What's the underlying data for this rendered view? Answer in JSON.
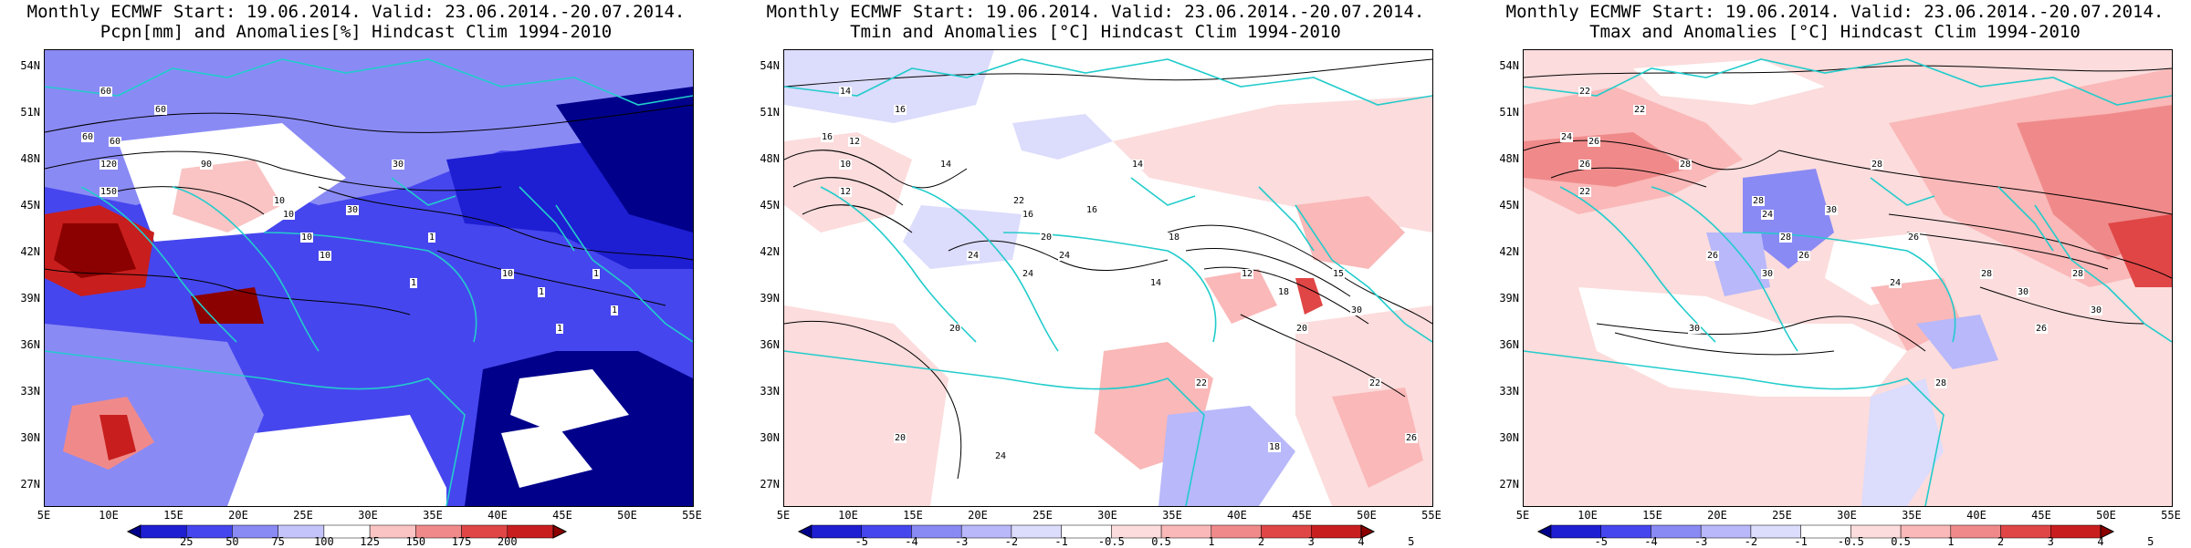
{
  "panels": [
    {
      "title1": "Monthly ECMWF Start: 19.06.2014. Valid: 23.06.2014.-20.07.2014.",
      "title2": "Pcpn[mm] and Anomalies[%] Hindcast Clim 1994-2010",
      "colorbar": {
        "labels": [
          "25",
          "50",
          "75",
          "100",
          "125",
          "150",
          "175",
          "200"
        ],
        "colors": [
          "#00008b",
          "#1e1ed2",
          "#4646ee",
          "#8a8af5",
          "#c4c4fa",
          "#ffffff",
          "#fac4c4",
          "#f08a8a",
          "#e04646",
          "#c81e1e",
          "#8b0000"
        ]
      },
      "contour_labels": [
        "60",
        "60",
        "60",
        "60",
        "90",
        "120",
        "150",
        "10",
        "10",
        "30",
        "30",
        "10",
        "10",
        "1",
        "1",
        "10",
        "1",
        "1",
        "1",
        "1"
      ]
    },
    {
      "title1": "Monthly ECMWF Start: 19.06.2014. Valid: 23.06.2014.-20.07.2014.",
      "title2": "Tmin and Anomalies [°C] Hindcast Clim 1994-2010",
      "colorbar": {
        "labels": [
          "-5",
          "-4",
          "-3",
          "-2",
          "-1",
          "-0.5",
          "0.5",
          "1",
          "2",
          "3",
          "4",
          "5"
        ],
        "colors": [
          "#00008b",
          "#1e1ed2",
          "#4646ee",
          "#8a8af5",
          "#b8b8fa",
          "#dcdcfc",
          "#ffffff",
          "#fcdcdc",
          "#fab8b8",
          "#f08a8a",
          "#e04646",
          "#c81e1e",
          "#8b0000"
        ]
      },
      "contour_labels": [
        "14",
        "16",
        "16",
        "12",
        "14",
        "10",
        "12",
        "22",
        "16",
        "14",
        "16",
        "20",
        "24",
        "18",
        "14",
        "12",
        "18",
        "20",
        "15",
        "30",
        "24",
        "24",
        "20",
        "22",
        "22",
        "20",
        "24",
        "18",
        "26"
      ]
    },
    {
      "title1": "Monthly ECMWF Start: 19.06.2014. Valid: 23.06.2014.-20.07.2014.",
      "title2": "Tmax and Anomalies [°C] Hindcast Clim 1994-2010",
      "colorbar": {
        "labels": [
          "-5",
          "-4",
          "-3",
          "-2",
          "-1",
          "-0.5",
          "0.5",
          "1",
          "2",
          "3",
          "4",
          "5"
        ],
        "colors": [
          "#00008b",
          "#1e1ed2",
          "#4646ee",
          "#8a8af5",
          "#b8b8fa",
          "#dcdcfc",
          "#ffffff",
          "#fcdcdc",
          "#fab8b8",
          "#f08a8a",
          "#e04646",
          "#c81e1e",
          "#8b0000"
        ]
      },
      "contour_labels": [
        "22",
        "22",
        "24",
        "26",
        "28",
        "26",
        "22",
        "28",
        "24",
        "28",
        "30",
        "28",
        "26",
        "26",
        "24",
        "28",
        "30",
        "26",
        "28",
        "30",
        "26",
        "30",
        "30",
        "28"
      ]
    }
  ],
  "axes": {
    "lat_labels": [
      "54N",
      "51N",
      "48N",
      "45N",
      "42N",
      "39N",
      "36N",
      "33N",
      "30N",
      "27N"
    ],
    "lon_labels": [
      "5E",
      "10E",
      "15E",
      "20E",
      "25E",
      "30E",
      "35E",
      "40E",
      "45E",
      "50E",
      "55E"
    ]
  }
}
